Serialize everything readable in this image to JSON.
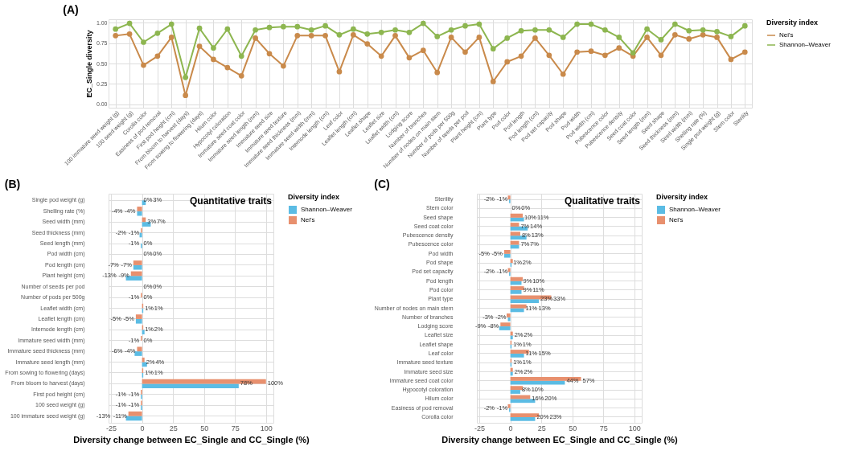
{
  "chart_data": [
    {
      "type": "line",
      "title": "(A)",
      "ylabel": "EC_Single diversity",
      "legend_title": "Diversity index",
      "legend": "right",
      "grid": true,
      "marker": "circle",
      "categories": [
        "100 immature seed weight (g)",
        "100 seed weight (g)",
        "Corolla color",
        "Easiness of pod removal",
        "First pod height (cm)",
        "From bloom to harvest (days)",
        "From sowing to flowering (days)",
        "Hilum color",
        "Hypocotyl coloration",
        "Immature seed coat color",
        "Immature seed length (mm)",
        "Immature seed size",
        "Immature seed texture",
        "Immature seed thickness (mm)",
        "Immature seed width (mm)",
        "Internode length (cm)",
        "Leaf color",
        "Leaflet length (cm)",
        "Leaflet shape",
        "Leaflet size",
        "Leaflet width (cm)",
        "Lodging score",
        "Number of branches",
        "Number of nodes on main stem",
        "Number of pods per 500g",
        "Number of seeds per pod",
        "Plant height (cm)",
        "Plant type",
        "Pod color",
        "Pod length",
        "Pod length (cm)",
        "Pod set capacity",
        "Pod shape",
        "Pod width",
        "Pod width (cm)",
        "Pubescence color",
        "Pubescence density",
        "Seed coat color",
        "Seed length (mm)",
        "Seed shape",
        "Seed thickness (mm)",
        "Seed width (mm)",
        "Shelling rate (%)",
        "Single pod weight (g)",
        "Stem color",
        "Sterility"
      ],
      "series": [
        {
          "name": "Nei's",
          "color": "#c98a4b",
          "values": [
            0.84,
            0.86,
            0.48,
            0.59,
            0.82,
            0.11,
            0.71,
            0.55,
            0.45,
            0.35,
            0.81,
            0.62,
            0.47,
            0.84,
            0.84,
            0.84,
            0.4,
            0.85,
            0.74,
            0.59,
            0.84,
            0.57,
            0.66,
            0.39,
            0.82,
            0.64,
            0.82,
            0.28,
            0.52,
            0.59,
            0.81,
            0.6,
            0.37,
            0.64,
            0.65,
            0.6,
            0.69,
            0.59,
            0.82,
            0.6,
            0.85,
            0.8,
            0.85,
            0.82,
            0.55,
            0.64
          ]
        },
        {
          "name": "Shannon–Weaver",
          "color": "#8db650",
          "values": [
            0.92,
            0.99,
            0.76,
            0.87,
            0.98,
            0.33,
            0.93,
            0.69,
            0.92,
            0.59,
            0.91,
            0.94,
            0.95,
            0.95,
            0.91,
            0.96,
            0.85,
            0.92,
            0.86,
            0.88,
            0.91,
            0.88,
            0.99,
            0.83,
            0.91,
            0.96,
            0.98,
            0.68,
            0.81,
            0.9,
            0.91,
            0.91,
            0.82,
            0.98,
            0.98,
            0.91,
            0.82,
            0.63,
            0.92,
            0.79,
            0.98,
            0.9,
            0.91,
            0.89,
            0.83,
            0.96
          ]
        }
      ],
      "ylim": [
        -0.04,
        1.04
      ],
      "yticks": [
        {
          "value": 0,
          "label": "0.00"
        },
        {
          "value": 0.25,
          "label": "0.25"
        },
        {
          "value": 0.5,
          "label": "0.50"
        },
        {
          "value": 0.75,
          "label": "0.75"
        },
        {
          "value": 1,
          "label": "1.00"
        }
      ]
    },
    {
      "type": "bar",
      "orientation": "horizontal",
      "title": "(B)",
      "xlabel": "Diversity change between EC_Single and CC_Single (%)",
      "legend_title": "Diversity index",
      "legend": "right",
      "grid": true,
      "annotations": [
        "Quantitative traits"
      ],
      "categories": [
        "Single pod weight (g)",
        "Shelling rate (%)",
        "Seed width (mm)",
        "Seed thickness (mm)",
        "Seed length (mm)",
        "Pod width (cm)",
        "Pod length (cm)",
        "Plant height (cm)",
        "Number of seeds per pod",
        "Number of pods per 500g",
        "Leaflet width (cm)",
        "Leaflet length (cm)",
        "Internode length (cm)",
        "Immature seed width (mm)",
        "Immature seed thickness (mm)",
        "Immature seed length (mm)",
        "From sowing to flowering (days)",
        "From bloom to harvest (days)",
        "First pod height (cm)",
        "100 seed weight (g)",
        "100 immature seed weight (g)"
      ],
      "series": [
        {
          "name": "Shannon–Weaver",
          "color": "#5bbce4",
          "values": [
            3,
            -4,
            7,
            -2,
            -1,
            0,
            -7,
            -13,
            0,
            0,
            1,
            -5,
            2,
            0,
            -6,
            4,
            1,
            78,
            -1,
            -1,
            -13
          ],
          "value_labels": [
            "3%",
            "-4%",
            "7%",
            "-2%",
            "-1%",
            "0%",
            "-7%",
            "-13%",
            "0%",
            "0%",
            "1%",
            "-5%",
            "2%",
            "0%",
            "-6%",
            "4%",
            "1%",
            "78%",
            "-1%",
            "-1%",
            "-13%"
          ]
        },
        {
          "name": "Nei's",
          "color": "#e8906e",
          "values": [
            0,
            -4,
            3,
            -1,
            0,
            0,
            -7,
            -9,
            0,
            -1,
            1,
            -5,
            1,
            -1,
            -4,
            2,
            1,
            100,
            -1,
            -1,
            -11
          ],
          "value_labels": [
            "0%",
            "-4%",
            "3%",
            "-1%",
            "0%",
            "0%",
            "-7%",
            "-9%",
            "0%",
            "-1%",
            "1%",
            "-5%",
            "1%",
            "-1%",
            "-4%",
            "2%",
            "1%",
            "100%",
            "-1%",
            "-1%",
            "-11%"
          ]
        }
      ],
      "xlim": [
        -27,
        106
      ],
      "xticks": [
        -25,
        0,
        25,
        50,
        75,
        100
      ]
    },
    {
      "type": "bar",
      "orientation": "horizontal",
      "title": "(C)",
      "xlabel": "Diversity change between EC_Single and CC_Single (%)",
      "legend_title": "Diversity index",
      "legend": "right",
      "grid": true,
      "annotations": [
        "Qualitative traits"
      ],
      "categories": [
        "Sterility",
        "Stem color",
        "Seed shape",
        "Seed coat color",
        "Pubescence density",
        "Pubescence color",
        "Pod width",
        "Pod shape",
        "Pod set capacity",
        "Pod length",
        "Pod color",
        "Plant type",
        "Number of nodes on main stem",
        "Number of branches",
        "Lodging score",
        "Leaflet size",
        "Leaflet shape",
        "Leaf color",
        "Immature seed texture",
        "Immature seed size",
        "Immature seed coat color",
        "Hypocotyl coloration",
        "Hilum color",
        "Easiness of pod removal",
        "Corolla color"
      ],
      "series": [
        {
          "name": "Shannon–Weaver",
          "color": "#5bbce4",
          "values": [
            -1,
            0,
            11,
            14,
            13,
            7,
            -5,
            1,
            -1,
            9,
            9,
            23,
            11,
            -2,
            -9,
            2,
            1,
            11,
            1,
            2,
            44,
            8,
            20,
            -1,
            20
          ],
          "value_labels": [
            "-1%",
            "0%",
            "11%",
            "14%",
            "13%",
            "7%",
            "-5%",
            "1%",
            "-1%",
            "9%",
            "9%",
            "23%",
            "11%",
            "-2%",
            "-9%",
            "2%",
            "1%",
            "11%",
            "1%",
            "2%",
            "44%",
            "8%",
            "20%",
            "-1%",
            "20%"
          ]
        },
        {
          "name": "Nei's",
          "color": "#e8906e",
          "values": [
            -2,
            0,
            10,
            7,
            8,
            7,
            -5,
            2,
            -2,
            10,
            11,
            33,
            13,
            -3,
            -8,
            2,
            1,
            15,
            1,
            2,
            57,
            10,
            16,
            -2,
            23
          ],
          "value_labels": [
            "-2%",
            "0%",
            "10%",
            "7%",
            "8%",
            "7%",
            "-5%",
            "2%",
            "-2%",
            "10%",
            "11%",
            "33%",
            "13%",
            "-3%",
            "-8%",
            "2%",
            "1%",
            "15%",
            "1%",
            "2%",
            "57%",
            "10%",
            "16%",
            "-2%",
            "23%"
          ]
        }
      ],
      "xlim": [
        -27,
        106
      ],
      "xticks": [
        -25,
        0,
        25,
        50,
        75,
        100
      ]
    }
  ]
}
